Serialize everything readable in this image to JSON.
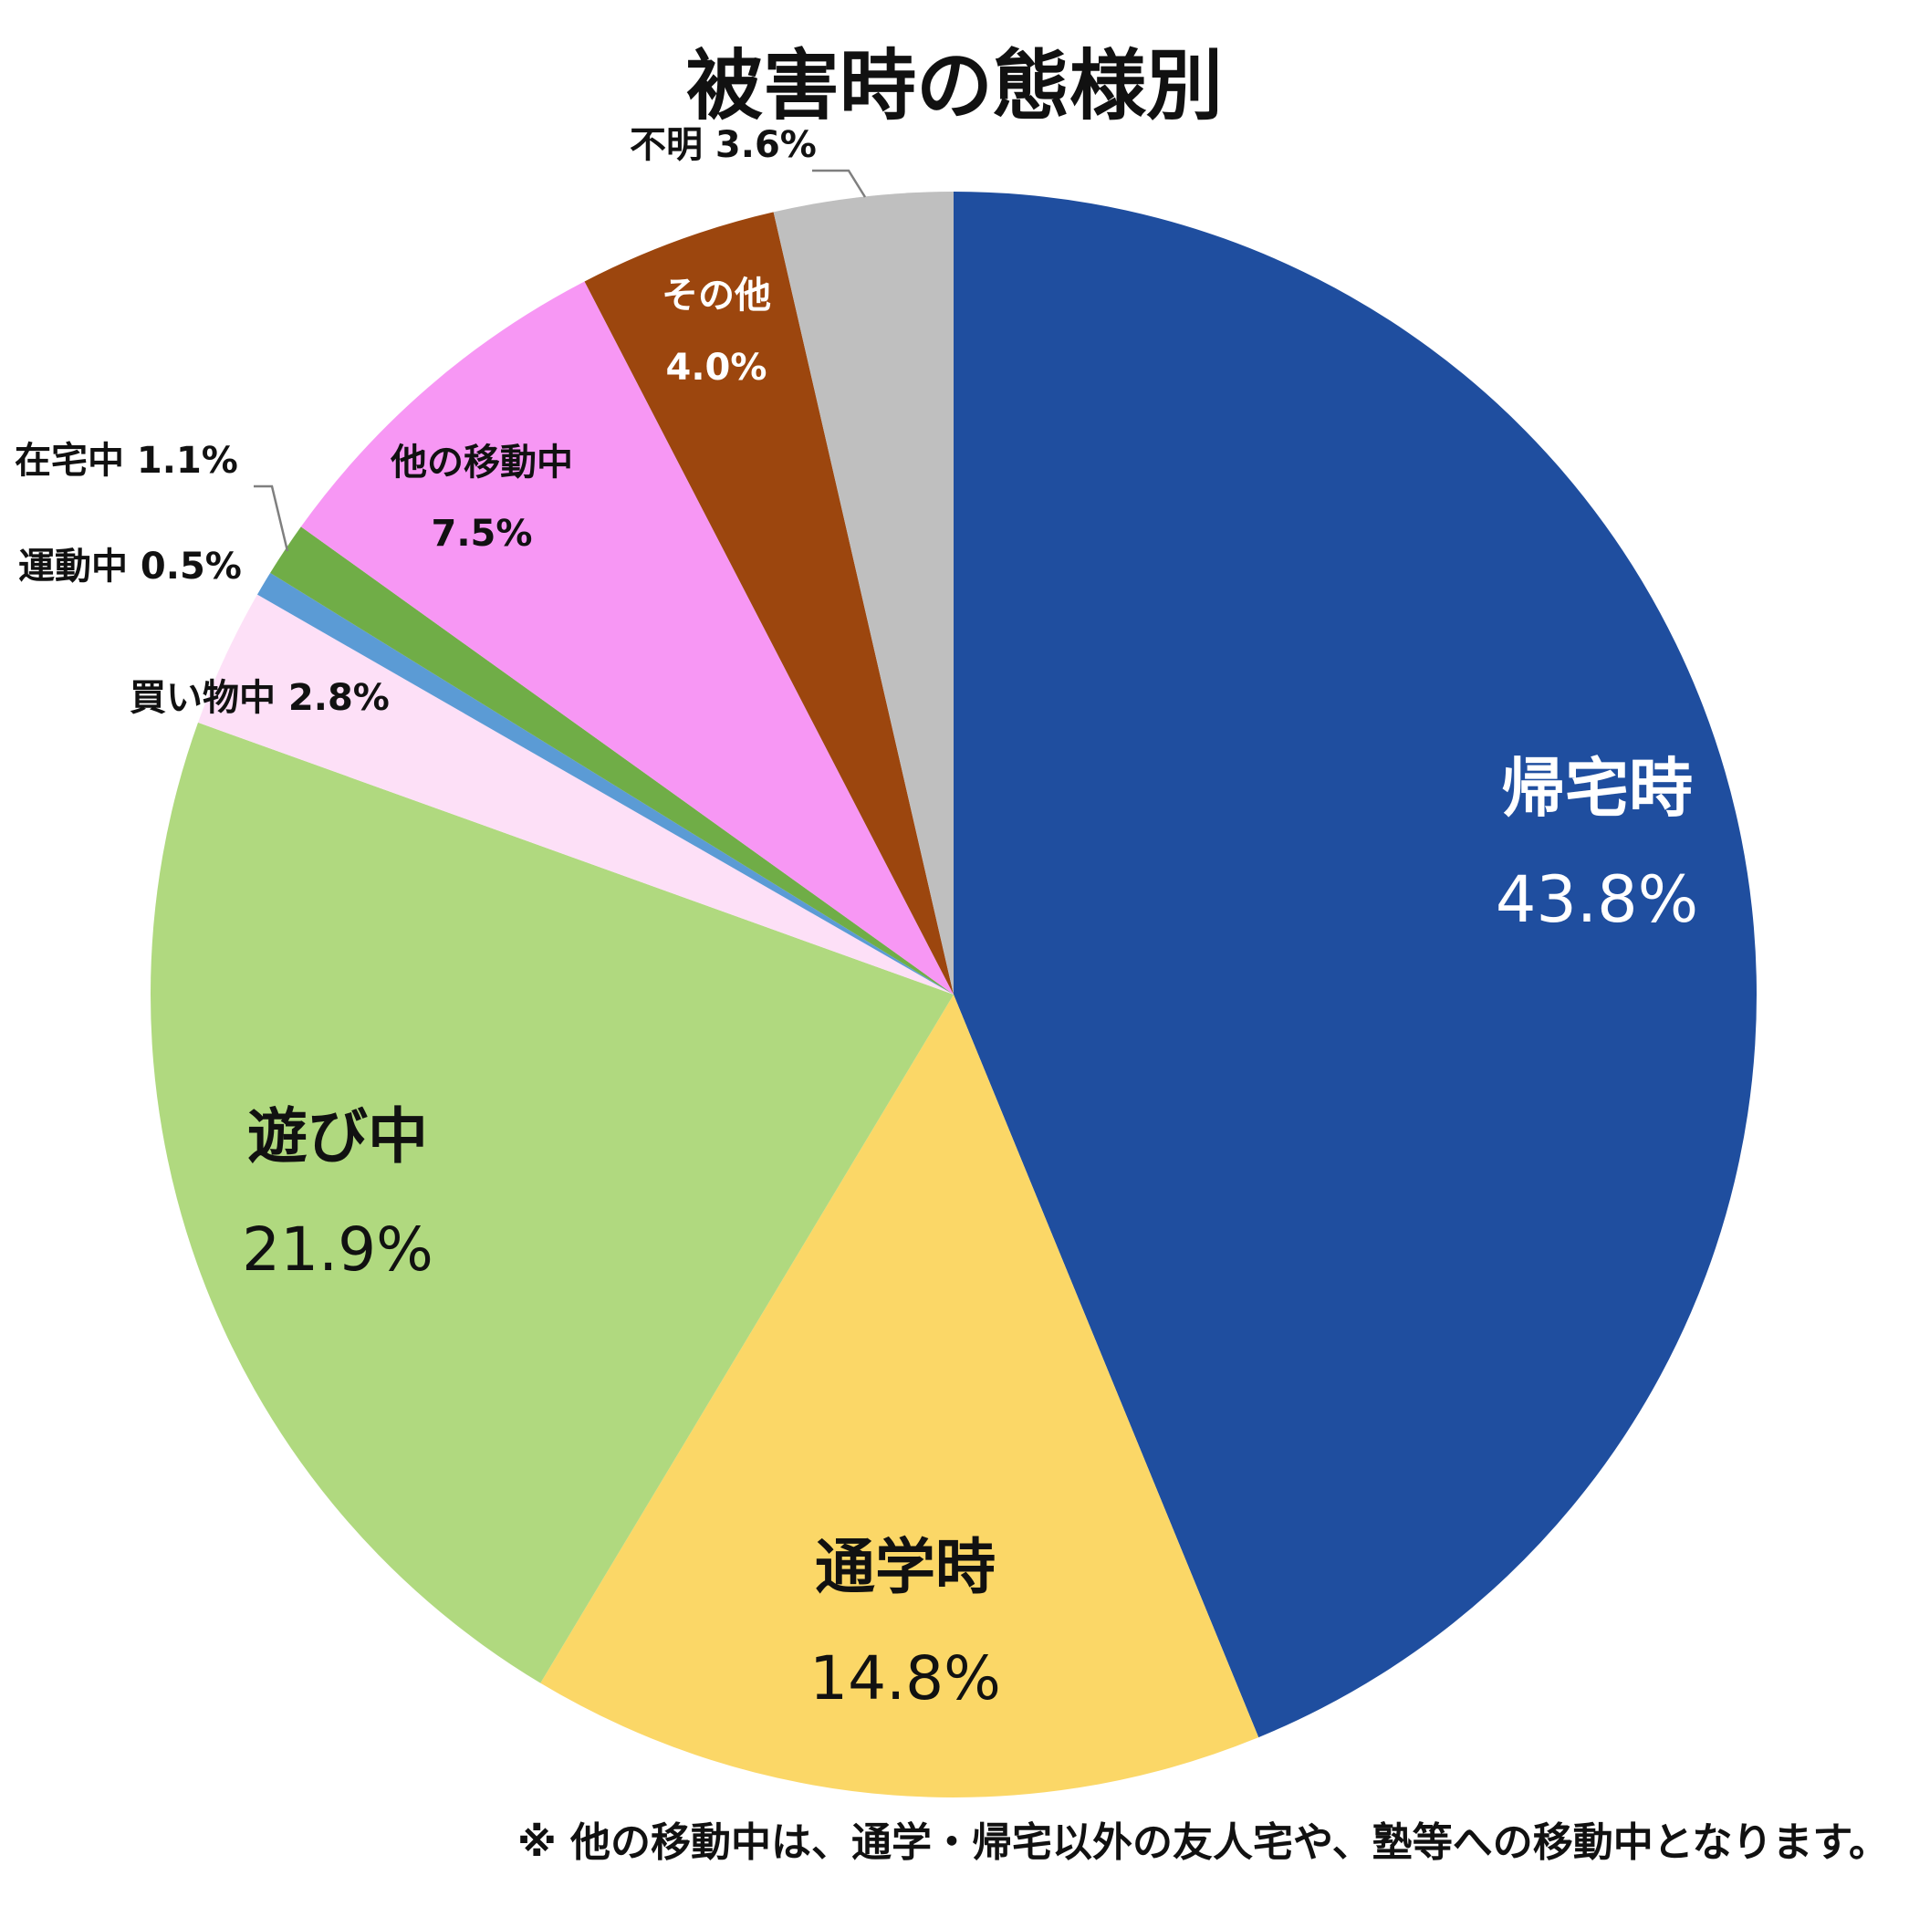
{
  "chart_data": {
    "type": "pie",
    "title": "被害時の態様別",
    "start_angle_deg": 0,
    "direction": "clockwise",
    "slices": [
      {
        "label": "帰宅時",
        "value": 43.8,
        "value_text": "43.8%",
        "color": "#1F4E9F",
        "label_color": "#ffffff",
        "label_placement": "inside",
        "size": "large"
      },
      {
        "label": "通学時",
        "value": 14.8,
        "value_text": "14.8%",
        "color": "#FBD767",
        "label_color": "#111111",
        "label_placement": "inside",
        "size": "large"
      },
      {
        "label": "遊び中",
        "value": 21.9,
        "value_text": "21.9%",
        "color": "#B0D97F",
        "label_color": "#111111",
        "label_placement": "inside",
        "size": "large"
      },
      {
        "label": "買い物中",
        "value": 2.8,
        "value_text": "2.8%",
        "color": "#FDE0F7",
        "label_color": "#111111",
        "label_placement": "outside",
        "size": "small"
      },
      {
        "label": "運動中",
        "value": 0.5,
        "value_text": "0.5%",
        "color": "#5B9BD5",
        "label_color": "#111111",
        "label_placement": "outside",
        "size": "small"
      },
      {
        "label": "在宅中",
        "value": 1.1,
        "value_text": "1.1%",
        "color": "#70AD47",
        "label_color": "#111111",
        "label_placement": "outside-leader",
        "size": "small"
      },
      {
        "label": "他の移動中",
        "value": 7.5,
        "value_text": "7.5%",
        "color": "#F797F4",
        "label_color": "#111111",
        "label_placement": "inside",
        "size": "medium"
      },
      {
        "label": "その他",
        "value": 4.0,
        "value_text": "4.0%",
        "color": "#9C460E",
        "label_color": "#ffffff",
        "label_placement": "inside",
        "size": "medium"
      },
      {
        "label": "不明",
        "value": 3.6,
        "value_text": "3.6%",
        "color": "#BFBFBF",
        "label_color": "#111111",
        "label_placement": "outside-leader",
        "size": "small"
      }
    ],
    "legend": "none"
  },
  "footnote": "※ 他の移動中は、通学・帰宅以外の友人宅や、塾等への移動中となります。"
}
